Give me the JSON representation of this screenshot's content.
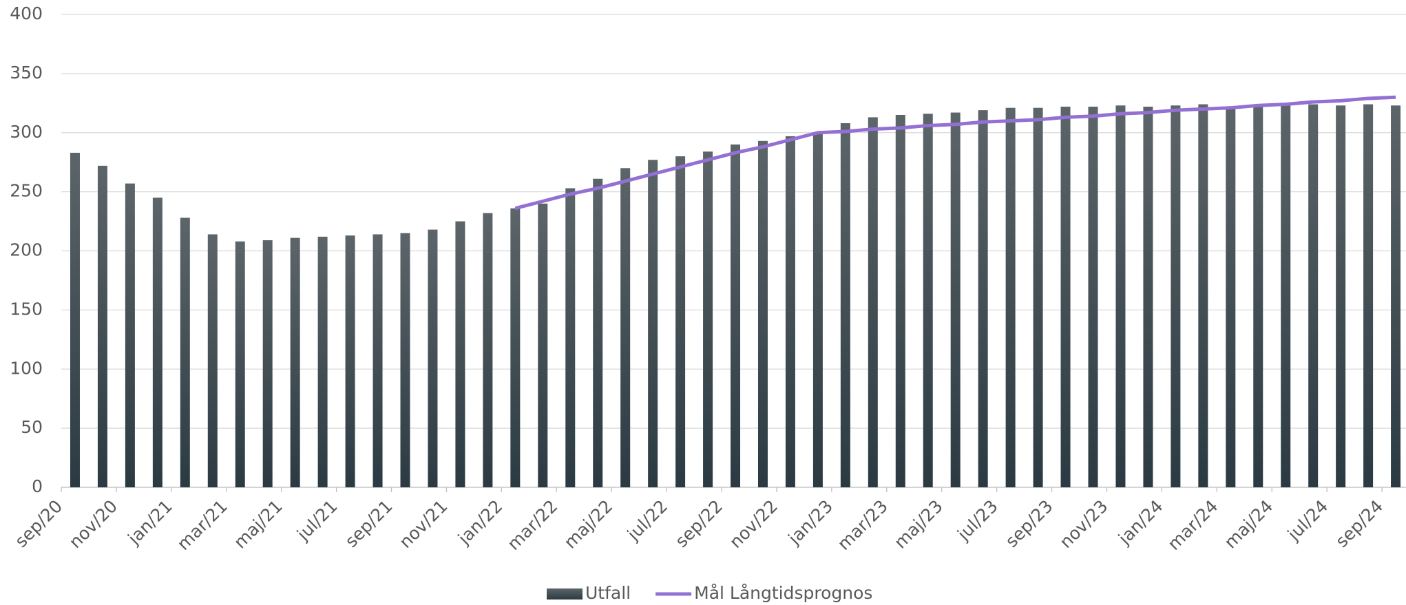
{
  "chart_data": {
    "type": "bar",
    "categories": [
      "sep/20",
      null,
      "nov/20",
      null,
      "jan/21",
      null,
      "mar/21",
      null,
      "maj/21",
      null,
      "jul/21",
      null,
      "sep/21",
      null,
      "nov/21",
      null,
      "jan/22",
      null,
      "mar/22",
      null,
      "maj/22",
      null,
      "jul/22",
      null,
      "sep/22",
      null,
      "nov/22",
      null,
      "jan/23",
      null,
      "mar/23",
      null,
      "maj/23",
      null,
      "jul/23",
      null,
      "sep/23",
      null,
      "nov/23",
      null,
      "jan/24",
      null,
      "mar/24",
      null,
      "maj/24",
      null,
      "jul/24",
      null,
      "sep/24"
    ],
    "series": [
      {
        "name": "Utfall",
        "type": "bar",
        "color": "#34434b",
        "values": [
          283,
          272,
          257,
          245,
          228,
          214,
          208,
          209,
          211,
          212,
          213,
          214,
          215,
          218,
          225,
          232,
          236,
          240,
          253,
          261,
          270,
          277,
          280,
          284,
          290,
          293,
          297,
          300,
          308,
          313,
          315,
          316,
          317,
          319,
          321,
          321,
          322,
          322,
          323,
          322,
          323,
          324,
          322,
          322,
          324,
          324,
          323,
          324,
          323
        ]
      },
      {
        "name": "Mål Långtidsprognos",
        "type": "line",
        "color": "#9370d3",
        "values": [
          null,
          null,
          null,
          null,
          null,
          null,
          null,
          null,
          null,
          null,
          null,
          null,
          null,
          null,
          null,
          null,
          236,
          242,
          248,
          253,
          259,
          265,
          271,
          277,
          283,
          288,
          294,
          300,
          301,
          303,
          304,
          306,
          307,
          309,
          310,
          311,
          313,
          314,
          316,
          317,
          319,
          320,
          321,
          323,
          324,
          326,
          327,
          329,
          330
        ]
      }
    ],
    "ylim": [
      0,
      400
    ],
    "yticks": [
      0,
      50,
      100,
      150,
      200,
      250,
      300,
      350,
      400
    ],
    "grid": true,
    "legend": "bottom"
  }
}
